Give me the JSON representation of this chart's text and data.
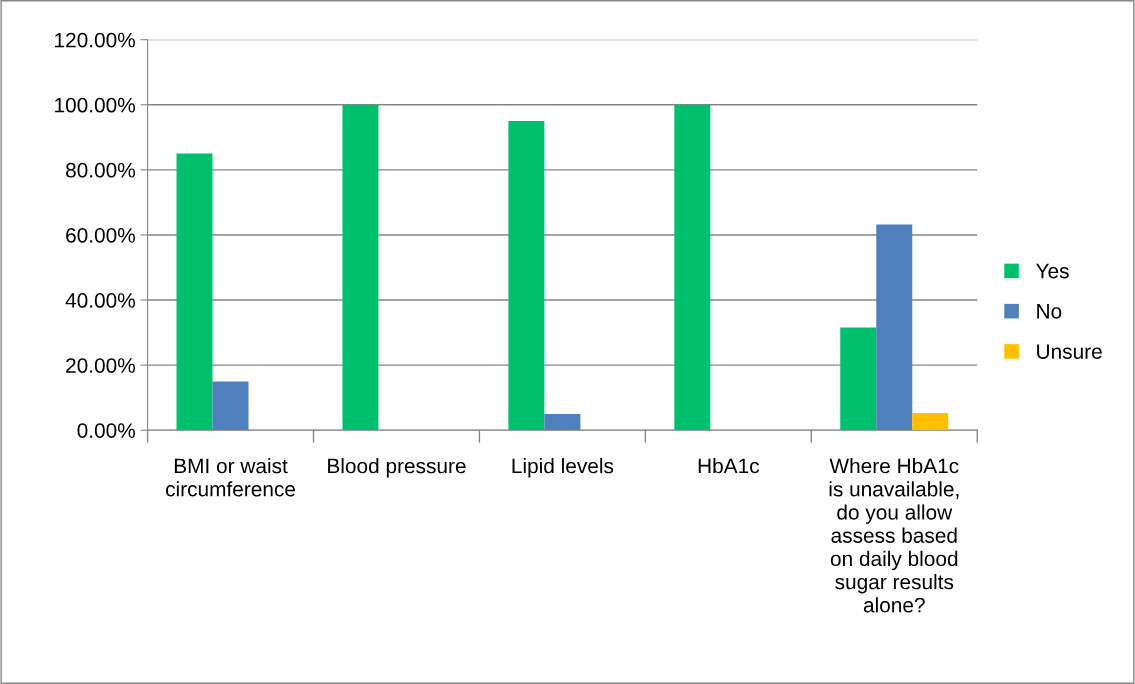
{
  "chart_data": {
    "type": "bar",
    "categories": [
      "BMI or waist\ncircumference",
      "Blood pressure",
      "Lipid levels",
      "HbA1c",
      "Where HbA1c\nis unavailable,\ndo you allow\nassess based\non daily blood\nsugar results\nalone?"
    ],
    "series": [
      {
        "name": "Yes",
        "color": "#00c06e",
        "values": [
          85,
          100,
          95,
          100,
          31.6
        ]
      },
      {
        "name": "No",
        "color": "#4f7fbd",
        "values": [
          15,
          null,
          5,
          null,
          63.2
        ]
      },
      {
        "name": "Unsure",
        "color": "#ffc000",
        "values": [
          null,
          null,
          null,
          null,
          5.3
        ]
      }
    ],
    "ylim": [
      0,
      120
    ],
    "yticks": [
      {
        "value": 0,
        "label": "0.00%"
      },
      {
        "value": 20,
        "label": "20.00%"
      },
      {
        "value": 40,
        "label": "40.00%"
      },
      {
        "value": 60,
        "label": "60.00%"
      },
      {
        "value": 80,
        "label": "80.00%"
      },
      {
        "value": 100,
        "label": "100.00%"
      },
      {
        "value": 120,
        "label": "120.00%"
      }
    ],
    "grid": "y",
    "legend": "right"
  }
}
